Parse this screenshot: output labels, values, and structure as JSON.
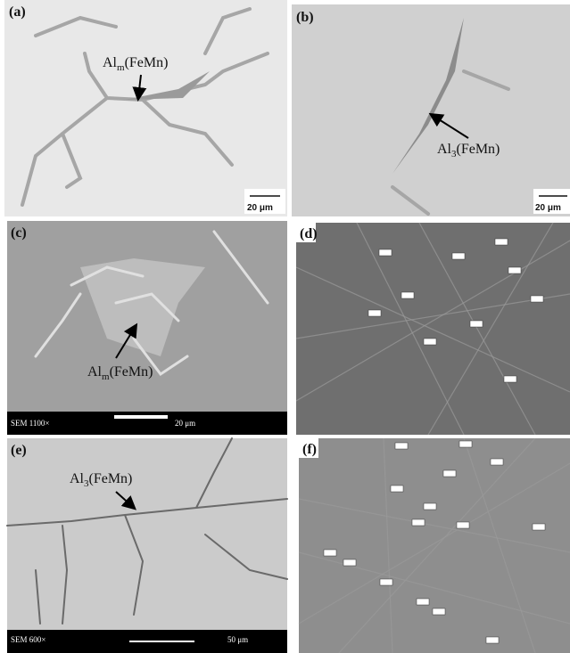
{
  "panels": [
    {
      "label": "(a)",
      "annotation": {
        "base": "Al",
        "sub": "m",
        "rest": "(FeMn)"
      },
      "scale_bar": "20 μm"
    },
    {
      "label": "(b)",
      "annotation": {
        "base": "Al",
        "sub": "3",
        "rest": "(FeMn)"
      },
      "scale_bar": "20 μm"
    },
    {
      "label": "(c)",
      "annotation": {
        "base": "Al",
        "sub": "m",
        "rest": "(FeMn)"
      },
      "info": "SEM 1100×",
      "scale_bar": "20 μm"
    },
    {
      "label": "(d)"
    },
    {
      "label": "(e)",
      "annotation": {
        "base": "Al",
        "sub": "3",
        "rest": "(FeMn)"
      },
      "info": "SEM 600×",
      "scale_bar": "50 μm"
    },
    {
      "label": "(f)"
    }
  ]
}
